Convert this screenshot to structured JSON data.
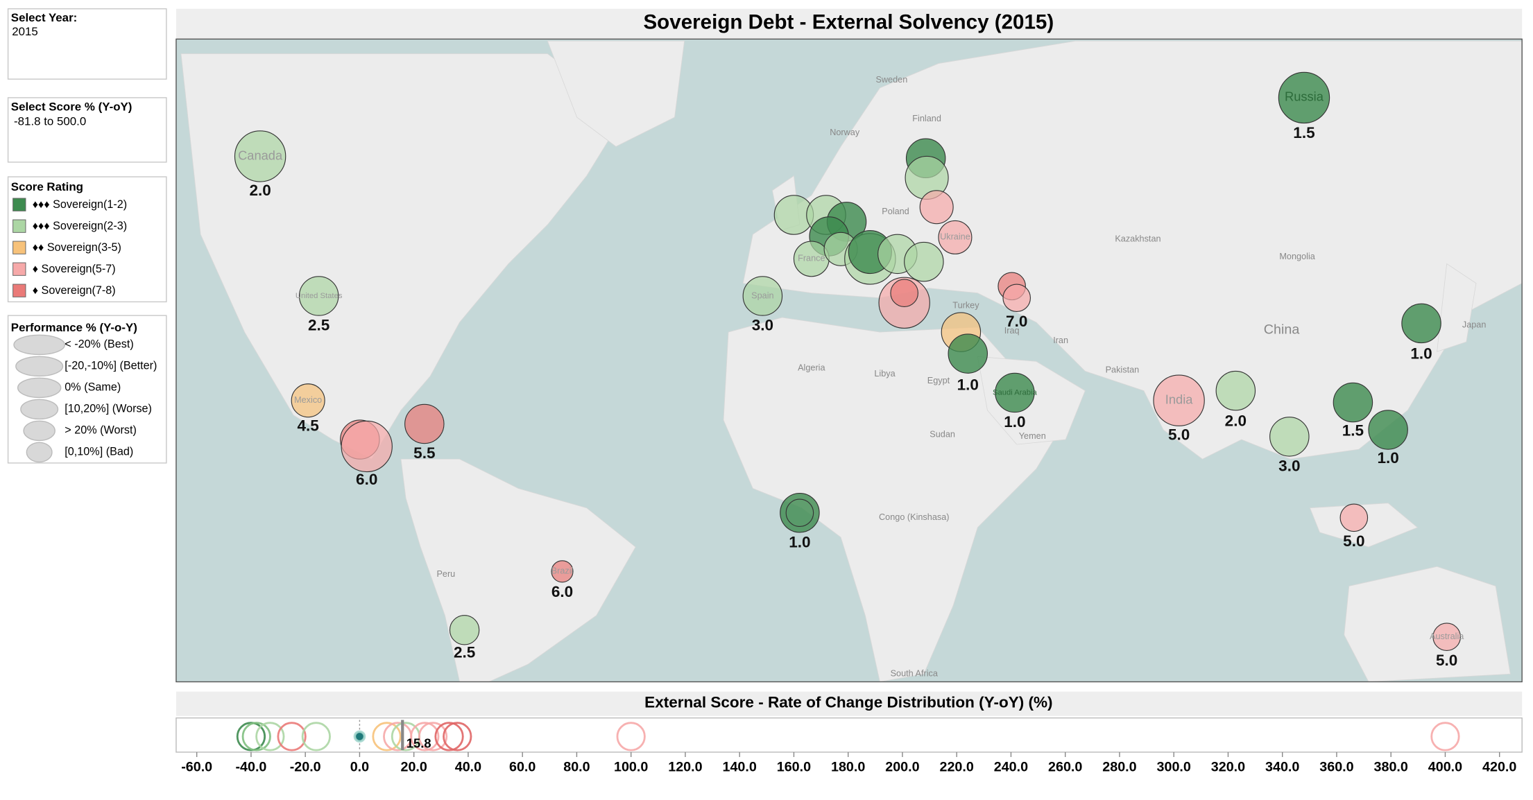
{
  "filters": [
    {
      "title": "Select Year:",
      "value": "2015"
    },
    {
      "title": "Select Score % (Y-oY)",
      "value": "-81.8 to 500.0"
    }
  ],
  "score_legend": {
    "title": "Score Rating",
    "items": [
      {
        "label": "♦♦♦ Sovereign(1-2)",
        "color": "#3d8b4f"
      },
      {
        "label": "♦♦♦ Sovereign(2-3)",
        "color": "#acd6a4"
      },
      {
        "label": "♦♦ Sovereign(3-5)",
        "color": "#f7c27a"
      },
      {
        "label": "♦ Sovereign(5-7)",
        "color": "#f6a9a9"
      },
      {
        "label": "♦ Sovereign(7-8)",
        "color": "#ea7a78"
      }
    ]
  },
  "size_legend": {
    "title": "Performance % (Y-o-Y)",
    "items": [
      "< -20% (Best)",
      "[-20,-10%] (Better)",
      "0% (Same)",
      "[10,20%] (Worse)",
      "> 20% (Worst)",
      "[0,10%] (Bad)"
    ]
  },
  "map": {
    "title": "Sovereign Debt - External Solvency (2015)",
    "place_labels": [
      "Sweden",
      "Norway",
      "Finland",
      "Poland",
      "Kazakhstan",
      "Mongolia",
      "China",
      "Iran",
      "Iraq",
      "Pakistan",
      "Libya",
      "Algeria",
      "Egypt",
      "Sudan",
      "Yemen",
      "Congo (Kinshasa)",
      "Peru",
      "South Africa",
      "Japan",
      "Turkey"
    ],
    "bubbles": [
      {
        "name": "Russia",
        "score": "1.5",
        "color": "#3d8b4f"
      },
      {
        "name": "Canada",
        "score": "2.0",
        "color": "#acd6a4"
      },
      {
        "name": "United States",
        "score": "2.5",
        "color": "#acd6a4"
      },
      {
        "name": "Mexico",
        "score": "4.5",
        "color": "#f7c27a"
      },
      {
        "color": "#ea7a78"
      },
      {
        "score": "6.0",
        "color": "#f6a9a9"
      },
      {
        "score": "5.5",
        "color": "#ea7a78"
      },
      {
        "name": "Brazil",
        "score": "6.0",
        "color": "#ea7a78"
      },
      {
        "score": "2.5",
        "color": "#acd6a4"
      },
      {
        "name": "Spain",
        "score": "3.0",
        "color": "#acd6a4"
      },
      {
        "color": "#acd6a4"
      },
      {
        "color": "#acd6a4"
      },
      {
        "color": "#3d8b4f"
      },
      {
        "color": "#3d8b4f"
      },
      {
        "name": "France",
        "color": "#acd6a4"
      },
      {
        "color": "#acd6a4"
      },
      {
        "color": "#acd6a4"
      },
      {
        "color": "#3d8b4f"
      },
      {
        "color": "#acd6a4"
      },
      {
        "color": "#acd6a4"
      },
      {
        "color": "#3d8b4f"
      },
      {
        "color": "#acd6a4"
      },
      {
        "color": "#f6a9a9"
      },
      {
        "name": "Ukraine",
        "color": "#f6a9a9"
      },
      {
        "color": "#f6a9a9"
      },
      {
        "color": "#ea7a78"
      },
      {
        "color": "#f7c27a"
      },
      {
        "score": "1.0",
        "color": "#3d8b4f"
      },
      {
        "color": "#ea7a78"
      },
      {
        "score": "7.0",
        "color": "#f6a9a9"
      },
      {
        "name": "Saudi Arabia",
        "score": "1.0",
        "color": "#3d8b4f"
      },
      {
        "name": "India",
        "score": "5.0",
        "color": "#f6a9a9"
      },
      {
        "score": "2.0",
        "color": "#acd6a4"
      },
      {
        "score": "3.0",
        "color": "#acd6a4"
      },
      {
        "score": "1.0",
        "color": "#3d8b4f"
      },
      {
        "score": "1.5",
        "color": "#3d8b4f"
      },
      {
        "score": "1.0",
        "color": "#3d8b4f"
      },
      {
        "score": "5.0",
        "color": "#f6a9a9"
      },
      {
        "name": "Australia",
        "score": "5.0",
        "color": "#f6a9a9"
      },
      {
        "score": "1.0",
        "color": "#3d8b4f"
      }
    ]
  },
  "chart_data": {
    "type": "scatter",
    "title": "External Score - Rate of Change Distribution (Y-oY) (%)",
    "x": [
      -40,
      -38,
      -33,
      -25,
      -16,
      0,
      10,
      14,
      17,
      24,
      27,
      33,
      36,
      100,
      400
    ],
    "colors": [
      "#3d8b4f",
      "#7fbf7f",
      "#acd6a4",
      "#ea7a78",
      "#acd6a4",
      "#1f7a7a",
      "#f7c27a",
      "#f6a9a9",
      "#acd6a4",
      "#f6a9a9",
      "#f6a9a9",
      "#e06666",
      "#e06666",
      "#f6a9a9",
      "#f6a9a9"
    ],
    "xlim": [
      -67.6,
      428.3
    ],
    "xticks": [
      {
        "value": -60,
        "label": "-60.0"
      },
      {
        "value": -40,
        "label": "-40.0"
      },
      {
        "value": -20,
        "label": "-20.0"
      },
      {
        "value": 0,
        "label": "0.0"
      },
      {
        "value": 20,
        "label": "20.0"
      },
      {
        "value": 40,
        "label": "40.0"
      },
      {
        "value": 60,
        "label": "60.0"
      },
      {
        "value": 80,
        "label": "80.0"
      },
      {
        "value": 100,
        "label": "100.0"
      },
      {
        "value": 120,
        "label": "120.0"
      },
      {
        "value": 140,
        "label": "140.0"
      },
      {
        "value": 160,
        "label": "160.0"
      },
      {
        "value": 180,
        "label": "180.0"
      },
      {
        "value": 200,
        "label": "200.0"
      },
      {
        "value": 220,
        "label": "220.0"
      },
      {
        "value": 240,
        "label": "240.0"
      },
      {
        "value": 260,
        "label": "260.0"
      },
      {
        "value": 280,
        "label": "280.0"
      },
      {
        "value": 300,
        "label": "300.0"
      },
      {
        "value": 320,
        "label": "320.0"
      },
      {
        "value": 340,
        "label": "340.0"
      },
      {
        "value": 360,
        "label": "360.0"
      },
      {
        "value": 380,
        "label": "380.0"
      },
      {
        "value": 400,
        "label": "400.0"
      },
      {
        "value": 420,
        "label": "420.0"
      }
    ],
    "reference_line": 15.8
  }
}
